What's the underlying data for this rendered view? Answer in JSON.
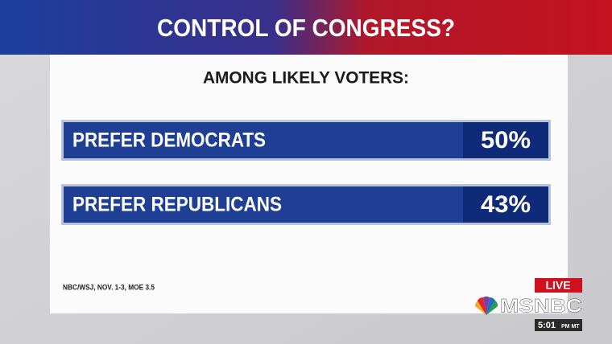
{
  "header": {
    "title": "CONTROL OF CONGRESS?"
  },
  "subtitle": "AMONG LIKELY VOTERS:",
  "rows": [
    {
      "label": "PREFER DEMOCRATS",
      "value": "50%"
    },
    {
      "label": "PREFER REPUBLICANS",
      "value": "43%"
    }
  ],
  "source": "NBC/WSJ, NOV. 1-3, MOE 3.5",
  "broadcast": {
    "live": "LIVE",
    "network": "MSNBC",
    "time": "5:01",
    "time_suffix": "PM MT"
  }
}
